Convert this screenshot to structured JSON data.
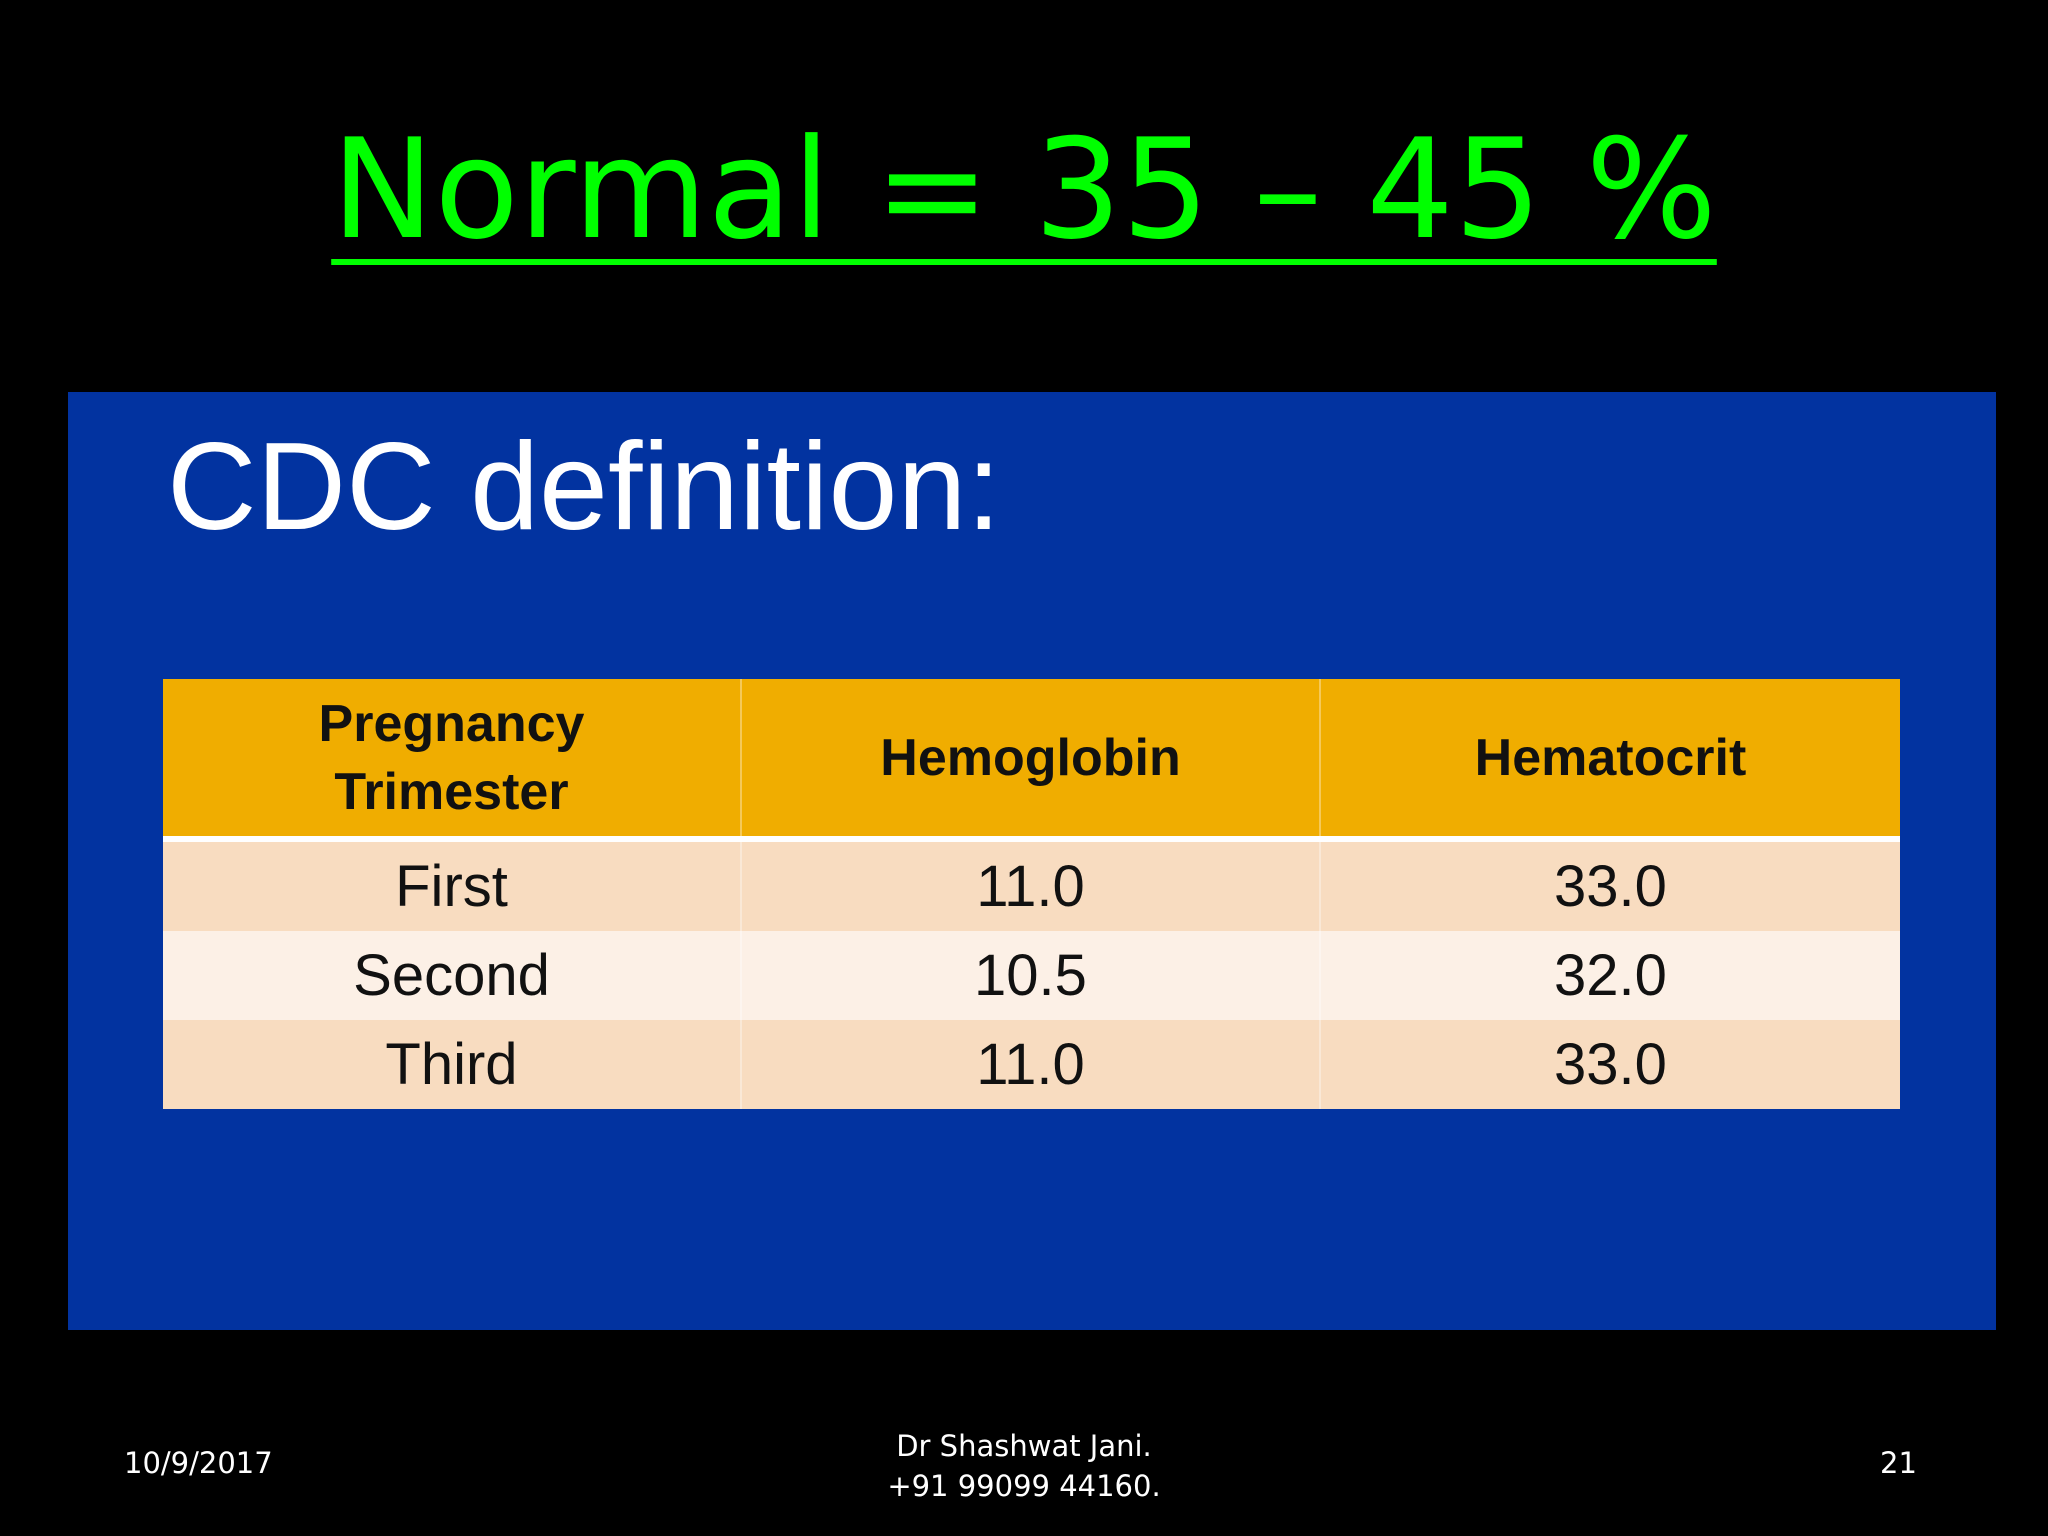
{
  "title": "Normal =  35 – 45 %",
  "panel": {
    "heading": "CDC definition:",
    "table": {
      "header": [
        "Pregnancy Trimester",
        "Hemoglobin",
        "Hematocrit"
      ],
      "rows": [
        [
          "First",
          "11.0",
          "33.0"
        ],
        [
          "Second",
          "10.5",
          "32.0"
        ],
        [
          "Third",
          "11.0",
          "33.0"
        ]
      ]
    }
  },
  "footer": {
    "date": "10/9/2017",
    "author": [
      "Dr Shashwat Jani.",
      "+91 99099 44160."
    ],
    "page": "21"
  }
}
